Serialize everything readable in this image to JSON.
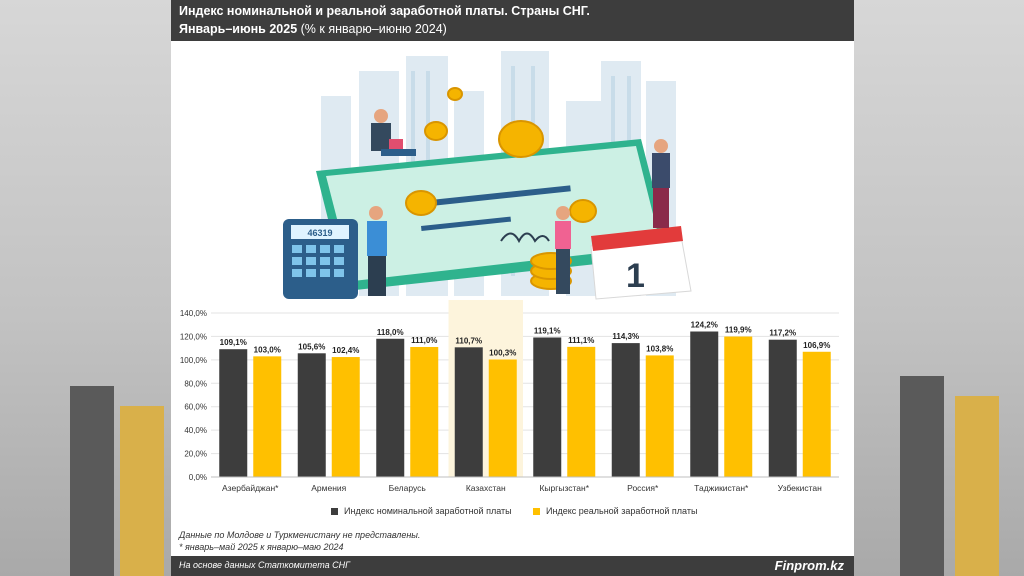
{
  "header": {
    "title_line1": "Индекс номинальной и реальной заработной платы. Страны СНГ.",
    "title_line2_bold": "Январь–июнь 2025",
    "title_line2_rest": " (% к январю–июню 2024)"
  },
  "chart_data": {
    "type": "bar",
    "categories": [
      "Азербайджан*",
      "Армения",
      "Беларусь",
      "Казахстан",
      "Кыргызстан*",
      "Россия*",
      "Таджикистан*",
      "Узбекистан"
    ],
    "series": [
      {
        "name": "Индекс номинальной заработной платы",
        "values": [
          109.1,
          105.6,
          118.0,
          110.7,
          119.1,
          114.3,
          124.2,
          117.2
        ],
        "labels": [
          "109,1%",
          "105,6%",
          "118,0%",
          "110,7%",
          "119,1%",
          "114,3%",
          "124,2%",
          "117,2%"
        ]
      },
      {
        "name": "Индекс реальной заработной платы",
        "values": [
          103.0,
          102.4,
          111.0,
          100.3,
          111.1,
          103.8,
          119.9,
          106.9
        ],
        "labels": [
          "103,0%",
          "102,4%",
          "111,0%",
          "100,3%",
          "111,1%",
          "103,8%",
          "119,9%",
          "106,9%"
        ]
      }
    ],
    "ylim": [
      0,
      140
    ],
    "yticks": [
      0,
      20,
      40,
      60,
      80,
      100,
      120,
      140
    ],
    "ytick_labels": [
      "0,0%",
      "20,0%",
      "40,0%",
      "60,0%",
      "80,0%",
      "100,0%",
      "120,0%",
      "140,0%"
    ],
    "highlight_category": "Казахстан",
    "grid": true,
    "legend_position": "bottom"
  },
  "colors": {
    "nominal": "#3d3d3d",
    "real": "#ffc000",
    "highlight": "#fdf4dc",
    "header_bg": "#3d3d3d"
  },
  "illustration": {
    "calculator_display": "46319",
    "calendar_number": "1"
  },
  "notes": {
    "line1": "Данные по Молдове и Туркменистану не представлены.",
    "line2": "* январь–май 2025 к январю–маю 2024"
  },
  "footer": {
    "source": "На основе данных Статкомитета СНГ",
    "brand": "Finprom.kz"
  }
}
